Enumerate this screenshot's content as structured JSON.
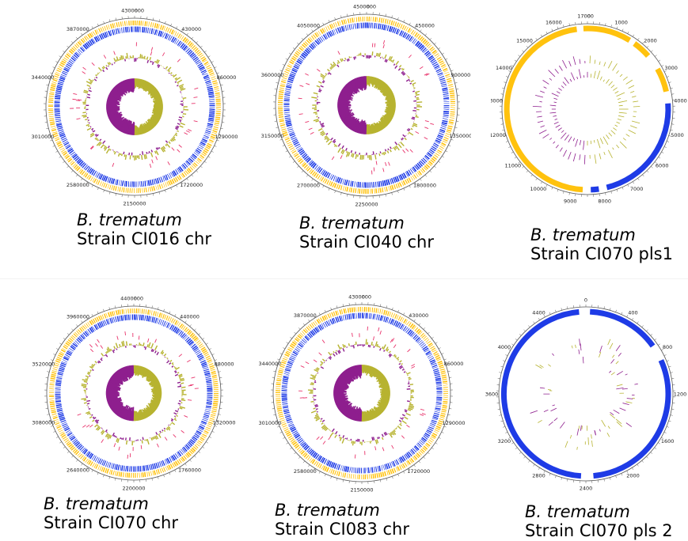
{
  "colors": {
    "cds_forward": "#FFC20E",
    "cds_reverse": "#1E3BE6",
    "rna_features": "#E8336B",
    "gc_content": "#B7B330",
    "gc_skew": "#8E1F8E",
    "ruler": "#555555"
  },
  "panels": [
    {
      "id": "ci016-chr",
      "kind": "chromosome",
      "species": "B. trematum",
      "strain": "Strain CI016 chr",
      "ticks": [
        "4300000",
        "0",
        "430000",
        "860000",
        "1290000",
        "1720000",
        "2150000",
        "2580000",
        "3010000",
        "3440000",
        "3870000"
      ]
    },
    {
      "id": "ci040-chr",
      "kind": "chromosome",
      "species": "B. trematum",
      "strain": "Strain CI040 chr",
      "ticks": [
        "4500000",
        "0",
        "450000",
        "900000",
        "1350000",
        "1800000",
        "2250000",
        "2700000",
        "3150000",
        "3600000",
        "4050000"
      ]
    },
    {
      "id": "ci070-pls1",
      "kind": "plasmid1",
      "species": "B. trematum",
      "strain": "Strain CI070 pls1",
      "ticks": [
        "17000",
        "0",
        "1000",
        "2000",
        "3000",
        "4000",
        "5000",
        "6000",
        "7000",
        "8000",
        "9000",
        "10000",
        "11000",
        "12000",
        "13000",
        "14000",
        "15000",
        "16000"
      ]
    },
    {
      "id": "ci070-chr",
      "kind": "chromosome",
      "species": "B. trematum",
      "strain": "Strain CI070 chr",
      "ticks": [
        "4400000",
        "0",
        "440000",
        "880000",
        "1320000",
        "1760000",
        "2200000",
        "2640000",
        "3080000",
        "3520000",
        "3960000"
      ]
    },
    {
      "id": "ci083-chr",
      "kind": "chromosome",
      "species": "B. trematum",
      "strain": "Strain CI083 chr",
      "ticks": [
        "4300000",
        "0",
        "430000",
        "860000",
        "1290000",
        "1720000",
        "2150000",
        "2580000",
        "3010000",
        "3440000",
        "3870000"
      ]
    },
    {
      "id": "ci070-pls2",
      "kind": "plasmid2",
      "species": "B. trematum",
      "strain": "Strain CI070 pls 2",
      "ticks": [
        "0",
        "400",
        "800",
        "1200",
        "1600",
        "2000",
        "2400",
        "2800",
        "3200",
        "3600",
        "4000",
        "4400"
      ]
    }
  ]
}
